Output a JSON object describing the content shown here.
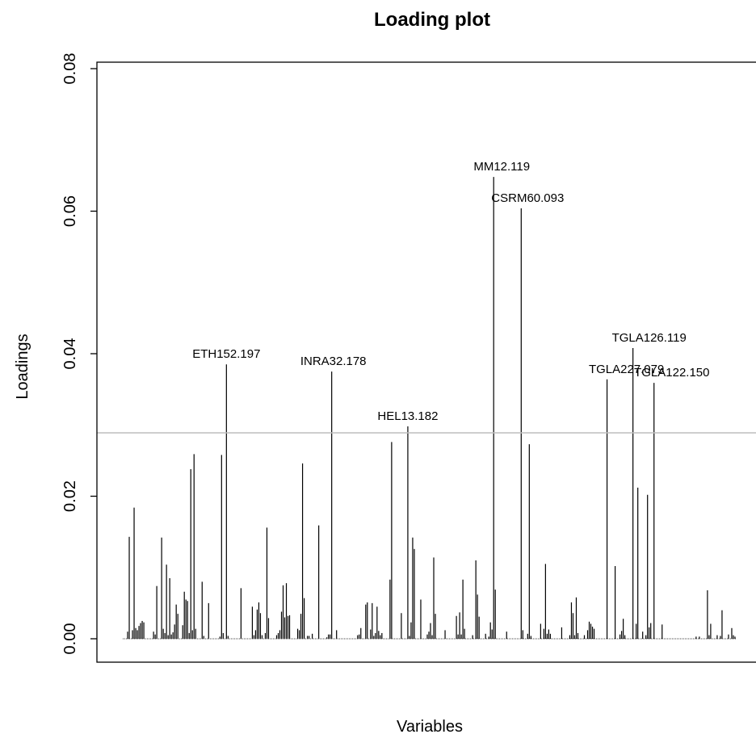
{
  "chart_data": {
    "type": "bar",
    "title": "Loading plot",
    "xlabel": "Variables",
    "ylabel": "Loadings",
    "ylim": [
      0.0,
      0.08
    ],
    "yticks": [
      0.0,
      0.02,
      0.04,
      0.06,
      0.08
    ],
    "ytick_labels": [
      "0.00",
      "0.02",
      "0.04",
      "0.06",
      "0.08"
    ],
    "threshold": 0.0289,
    "n_variables": 380,
    "grid": false,
    "colors": {
      "bars": "#000000",
      "threshold": "#bebebe",
      "axes": "#000000"
    },
    "labeled_peaks": [
      {
        "name": "ETH152.197",
        "index": 64,
        "value": 0.0385
      },
      {
        "name": "INRA32.178",
        "index": 130,
        "value": 0.0375
      },
      {
        "name": "HEL13.182",
        "index": 176,
        "value": 0.0298
      },
      {
        "name": "MM12.119",
        "index": 234,
        "value": 0.0648
      },
      {
        "name": "CSRM60.093",
        "index": 250,
        "value": 0.0604
      },
      {
        "name": "TGLA227.079",
        "index": 311,
        "value": 0.0364
      },
      {
        "name": "TGLA126.119",
        "index": 325,
        "value": 0.0408
      },
      {
        "name": "TGLA122.150",
        "index": 339,
        "value": 0.0359
      }
    ],
    "values": [
      0,
      0,
      0,
      0.001,
      0.0143,
      0,
      0.0012,
      0.0184,
      0.0015,
      0.0012,
      0.0018,
      0.0022,
      0.0025,
      0.0023,
      0,
      0,
      0,
      0,
      0,
      0.001,
      0.0006,
      0.0074,
      0,
      0,
      0.0142,
      0.0014,
      0.0008,
      0.0104,
      0.0005,
      0.0085,
      0.0006,
      0.0009,
      0.002,
      0.0048,
      0.0035,
      0,
      0,
      0.0019,
      0.0066,
      0.0055,
      0.0053,
      0.0008,
      0.0238,
      0.0012,
      0.0259,
      0.0014,
      0,
      0,
      0,
      0.008,
      0.0004,
      0,
      0,
      0.005,
      0,
      0,
      0,
      0,
      0,
      0,
      0.0003,
      0.0258,
      0.0008,
      0,
      0.0385,
      0.0004,
      0,
      0,
      0,
      0,
      0,
      0,
      0,
      0.0071,
      0,
      0,
      0,
      0,
      0,
      0,
      0.0045,
      0.0005,
      0.0012,
      0.0041,
      0.0051,
      0.0036,
      0.0005,
      0,
      0.0008,
      0.0156,
      0.0029,
      0,
      0,
      0,
      0,
      0.0005,
      0.0008,
      0.0012,
      0.0038,
      0.0075,
      0.003,
      0.0078,
      0.0032,
      0.0033,
      0,
      0,
      0,
      0,
      0.0014,
      0.0012,
      0.0035,
      0.0246,
      0.0057,
      0,
      0.0004,
      0.0004,
      0,
      0.0007,
      0,
      0,
      0,
      0.0159,
      0,
      0,
      0,
      0,
      0.0002,
      0.0006,
      0.0006,
      0.0375,
      0,
      0,
      0.0012,
      0,
      0,
      0,
      0,
      0,
      0,
      0,
      0,
      0,
      0,
      0,
      0,
      0.0005,
      0.0006,
      0.0015,
      0,
      0,
      0.0048,
      0.0051,
      0,
      0.0013,
      0.005,
      0.0004,
      0.0008,
      0.0045,
      0.0011,
      0.0005,
      0.0008,
      0,
      0,
      0,
      0,
      0.0083,
      0.0276,
      0,
      0,
      0,
      0,
      0,
      0.0036,
      0,
      0,
      0,
      0.0298,
      0.0004,
      0.0023,
      0.0142,
      0.0126,
      0,
      0,
      0,
      0.0055,
      0,
      0,
      0,
      0.0006,
      0.001,
      0.0022,
      0.0005,
      0.0114,
      0.0035,
      0,
      0,
      0,
      0,
      0,
      0.0012,
      0,
      0,
      0,
      0,
      0,
      0,
      0.0032,
      0.0006,
      0.0037,
      0.0006,
      0.0083,
      0.0014,
      0,
      0,
      0,
      0,
      0.0005,
      0,
      0.011,
      0.0062,
      0.0031,
      0,
      0,
      0,
      0.0007,
      0,
      0.0003,
      0.0023,
      0.0013,
      0.0648,
      0.0069,
      0,
      0,
      0,
      0,
      0,
      0,
      0.001,
      0,
      0,
      0,
      0,
      0,
      0,
      0,
      0,
      0.0604,
      0.0012,
      0,
      0,
      0.0007,
      0.0273,
      0.0004,
      0,
      0,
      0,
      0,
      0,
      0.0021,
      0,
      0.0014,
      0.0105,
      0.0007,
      0.0013,
      0.0007,
      0,
      0,
      0,
      0,
      0,
      0,
      0.0016,
      0,
      0,
      0,
      0,
      0.0005,
      0.0051,
      0.0036,
      0.0005,
      0.0058,
      0.0008,
      0,
      0,
      0,
      0.0005,
      0,
      0.0012,
      0.0024,
      0.0021,
      0.0017,
      0.0014,
      0,
      0,
      0,
      0,
      0,
      0,
      0,
      0.0364,
      0,
      0,
      0,
      0,
      0.0102,
      0,
      0,
      0.0006,
      0.0011,
      0.0028,
      0.0005,
      0,
      0,
      0,
      0,
      0.0408,
      0,
      0.0021,
      0.0212,
      0,
      0,
      0.001,
      0,
      0.0005,
      0.0202,
      0.0016,
      0.0022,
      0,
      0.0359,
      0,
      0,
      0,
      0,
      0.002,
      0,
      0,
      0,
      0,
      0,
      0,
      0,
      0,
      0,
      0,
      0,
      0,
      0,
      0,
      0,
      0,
      0,
      0,
      0,
      0,
      0.0003,
      0,
      0.0003,
      0,
      0,
      0,
      0,
      0.0068,
      0.0005,
      0.0021,
      0,
      0,
      0,
      0.0005,
      0,
      0.0004,
      0.004,
      0,
      0,
      0,
      0.0006,
      0,
      0.0015,
      0.0005,
      0.0003,
      0,
      0,
      0
    ]
  }
}
